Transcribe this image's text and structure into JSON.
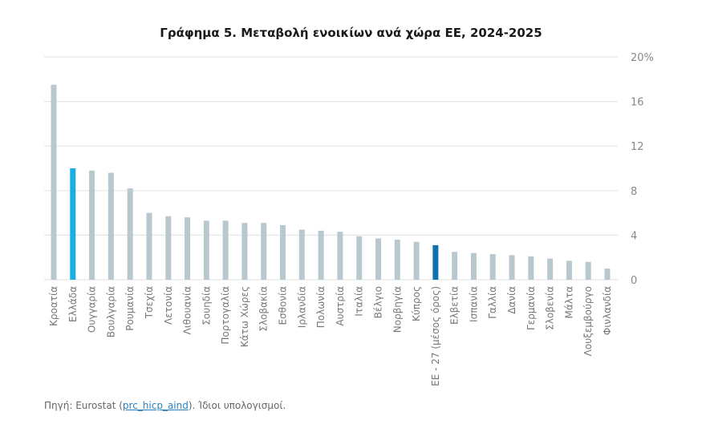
{
  "chart_data": {
    "type": "bar",
    "title": "Γράφημα 5. Μεταβολή ενοικίων ανά χώρα ΕΕ, 2024-2025",
    "categories": [
      "Κροατία",
      "Ελλάδα",
      "Ουγγαρία",
      "Βουλγαρία",
      "Ρουμανία",
      "Τσεχία",
      "Λετονία",
      "Λιθουανία",
      "Σουηδία",
      "Πορτογαλία",
      "Κάτω Χώρες",
      "Σλοβακία",
      "Εσθονία",
      "Ιρλανδία",
      "Πολωνία",
      "Αυστρία",
      "Ιταλία",
      "Βέλγιο",
      "Νορβηγία",
      "Κύπρος",
      "ΕΕ - 27 (μέσος όρος)",
      "Ελβετία",
      "Ισπανία",
      "Γαλλία",
      "Δανία",
      "Γερμανία",
      "Σλοβενία",
      "Μάλτα",
      "Λουξεμβούργο",
      "Φινλανδία"
    ],
    "values": [
      17.5,
      10.0,
      9.8,
      9.6,
      8.2,
      6.0,
      5.7,
      5.6,
      5.3,
      5.3,
      5.1,
      5.1,
      4.9,
      4.5,
      4.4,
      4.3,
      3.9,
      3.7,
      3.6,
      3.4,
      3.1,
      2.5,
      2.4,
      2.3,
      2.2,
      2.1,
      1.9,
      1.7,
      1.6,
      1.0
    ],
    "ylim": [
      0,
      20
    ],
    "yticks": [
      "0",
      "4",
      "8",
      "12",
      "16",
      "20%"
    ],
    "ytick_values": [
      0,
      4,
      8,
      12,
      16,
      20
    ],
    "y_axis_side": "right",
    "grid": true,
    "colors": {
      "default": "#b9c7cf",
      "Ελλάδα": "#1aaee5",
      "ΕΕ - 27 (μέσος όρος)": "#0d72b0",
      "grid": "#e3e6e8",
      "tick_text": "#888888"
    }
  },
  "source": {
    "prefix": "Πηγή: Eurostat (",
    "link": "prc_hicp_aind",
    "suffix": "). Ίδιοι υπολογισμοί."
  }
}
